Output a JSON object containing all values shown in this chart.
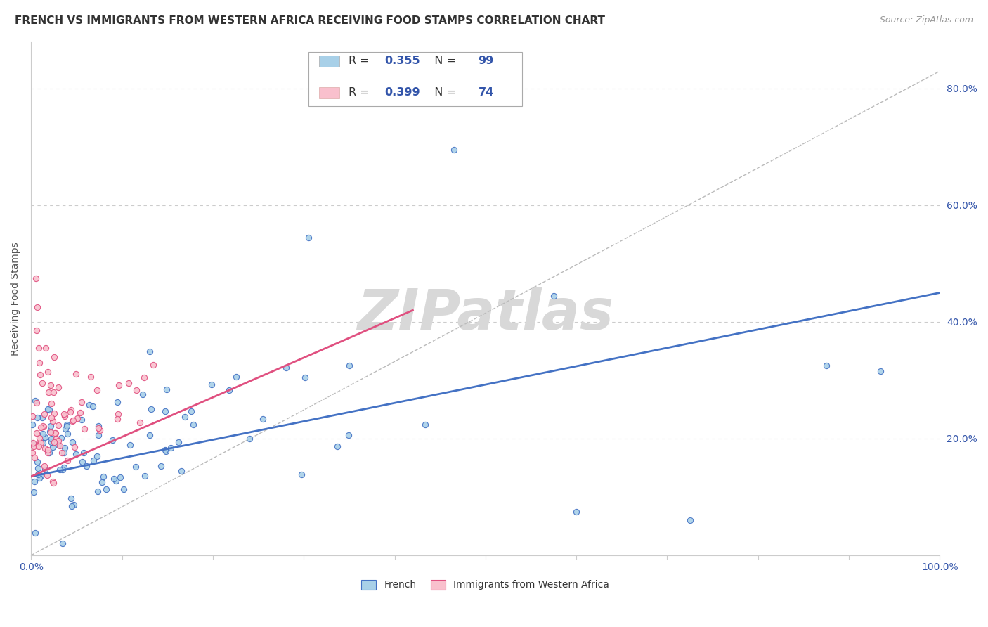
{
  "title": "FRENCH VS IMMIGRANTS FROM WESTERN AFRICA RECEIVING FOOD STAMPS CORRELATION CHART",
  "source": "Source: ZipAtlas.com",
  "ylabel": "Receiving Food Stamps",
  "series": [
    {
      "name": "French",
      "color": "#a8d0e8",
      "line_color": "#4472c4",
      "R": 0.355,
      "N": 99,
      "trend_x0": 0.0,
      "trend_x1": 1.0,
      "trend_y0": 0.135,
      "trend_y1": 0.45
    },
    {
      "name": "Immigrants from Western Africa",
      "color": "#f9c0cd",
      "line_color": "#e05080",
      "R": 0.399,
      "N": 74,
      "trend_x0": 0.0,
      "trend_x1": 0.42,
      "trend_y0": 0.135,
      "trend_y1": 0.42
    }
  ],
  "diag_line": {
    "x0": 0.0,
    "x1": 1.0,
    "y0": 0.0,
    "y1": 0.83
  },
  "watermark": "ZIPatlas",
  "watermark_color": "#d8d8d8",
  "background_color": "#ffffff",
  "grid_color": "#cccccc",
  "title_fontsize": 11,
  "axis_label_fontsize": 10,
  "legend_fontsize": 11,
  "ytick_positions": [
    0.0,
    0.2,
    0.4,
    0.6,
    0.8
  ],
  "ytick_labels": [
    "",
    "20.0%",
    "40.0%",
    "60.0%",
    "80.0%"
  ],
  "xlim": [
    0,
    1.0
  ],
  "ylim": [
    0,
    0.88
  ]
}
